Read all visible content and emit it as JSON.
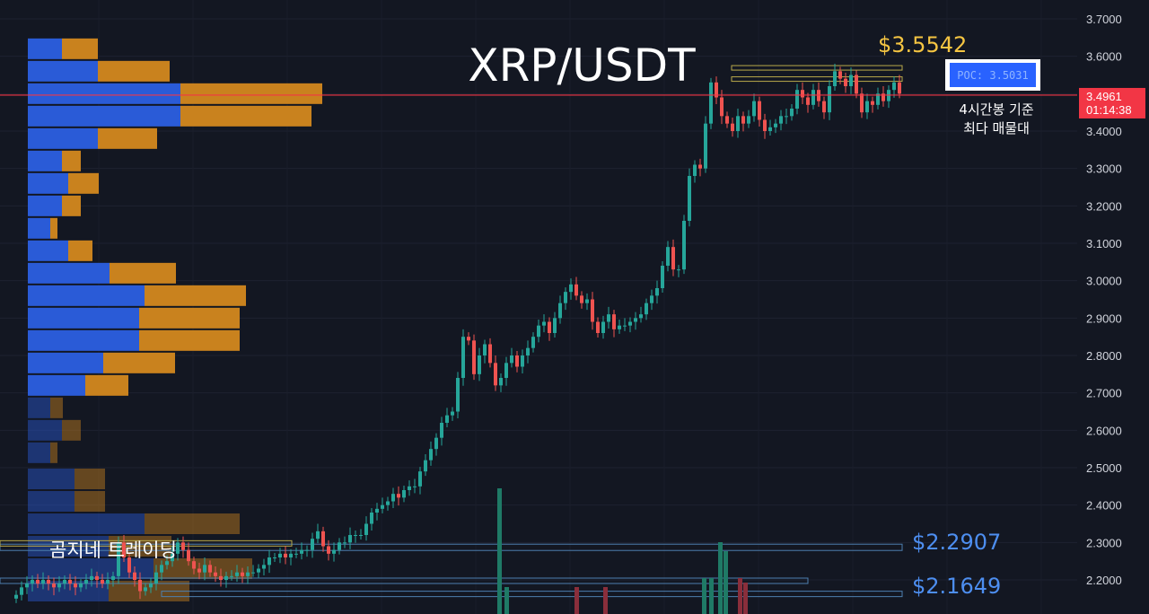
{
  "chart_data": {
    "type": "candlestick",
    "title": "XRP/USDT",
    "price_axis": {
      "ylim": [
        2.12,
        3.72
      ],
      "ticks": [
        "3.7000",
        "3.6000",
        "3.5000",
        "3.4000",
        "3.3000",
        "3.2000",
        "3.1000",
        "3.0000",
        "2.9000",
        "2.8000",
        "2.7000",
        "2.6000",
        "2.5000",
        "2.4000",
        "2.3000",
        "2.2000"
      ],
      "side": "right"
    },
    "current_price": {
      "value": "3.4961",
      "countdown": "01:14:38",
      "price": 3.4961
    },
    "poc": {
      "label": "POC: 3.5031",
      "price": 3.5031,
      "note_lines": [
        "4시간봉 기준",
        "최다 매물대"
      ]
    },
    "peak_label": {
      "text": "$3.5542",
      "price": 3.5542
    },
    "levels": [
      {
        "text": "$2.2907",
        "price": 2.2907
      },
      {
        "text": "$2.1649",
        "price": 2.1649
      }
    ],
    "watermark": "곰지네 트레이딩",
    "volume_profile": {
      "description_free": true,
      "rows": [
        {
          "price": 3.62,
          "buy": 38,
          "sell": 40
        },
        {
          "price": 3.56,
          "buy": 78,
          "sell": 80
        },
        {
          "price": 3.5,
          "buy": 170,
          "sell": 158
        },
        {
          "price": 3.44,
          "buy": 170,
          "sell": 146
        },
        {
          "price": 3.38,
          "buy": 78,
          "sell": 66
        },
        {
          "price": 3.32,
          "buy": 38,
          "sell": 21
        },
        {
          "price": 3.26,
          "buy": 45,
          "sell": 34
        },
        {
          "price": 3.2,
          "buy": 38,
          "sell": 21
        },
        {
          "price": 3.14,
          "buy": 25,
          "sell": 8
        },
        {
          "price": 3.08,
          "buy": 45,
          "sell": 27
        },
        {
          "price": 3.02,
          "buy": 91,
          "sell": 74
        },
        {
          "price": 2.96,
          "buy": 130,
          "sell": 113
        },
        {
          "price": 2.9,
          "buy": 124,
          "sell": 112
        },
        {
          "price": 2.84,
          "buy": 124,
          "sell": 112
        },
        {
          "price": 2.78,
          "buy": 84,
          "sell": 80
        },
        {
          "price": 2.72,
          "buy": 64,
          "sell": 48
        },
        {
          "price": 2.66,
          "buy": 25,
          "sell": 14
        },
        {
          "price": 2.6,
          "buy": 38,
          "sell": 21
        },
        {
          "price": 2.54,
          "buy": 25,
          "sell": 8
        },
        {
          "price": 2.47,
          "buy": 52,
          "sell": 34
        },
        {
          "price": 2.41,
          "buy": 52,
          "sell": 34
        },
        {
          "price": 2.35,
          "buy": 130,
          "sell": 106
        },
        {
          "price": 2.29,
          "buy": 90,
          "sell": 70
        },
        {
          "price": 2.23,
          "buy": 140,
          "sell": 110
        },
        {
          "price": 2.17,
          "buy": 90,
          "sell": 90
        }
      ]
    },
    "candles_anchor_close": [
      2.16,
      2.18,
      2.19,
      2.2,
      2.19,
      2.2,
      2.19,
      2.18,
      2.19,
      2.2,
      2.19,
      2.18,
      2.19,
      2.2,
      2.21,
      2.2,
      2.19,
      2.2,
      2.21,
      2.3,
      2.26,
      2.22,
      2.2,
      2.17,
      2.18,
      2.19,
      2.22,
      2.24,
      2.25,
      2.27,
      2.3,
      2.28,
      2.25,
      2.23,
      2.22,
      2.24,
      2.22,
      2.21,
      2.2,
      2.21,
      2.21,
      2.22,
      2.21,
      2.22,
      2.22,
      2.23,
      2.24,
      2.26,
      2.26,
      2.27,
      2.26,
      2.27,
      2.27,
      2.28,
      2.28,
      2.31,
      2.33,
      2.29,
      2.27,
      2.28,
      2.3,
      2.3,
      2.32,
      2.32,
      2.32,
      2.35,
      2.38,
      2.39,
      2.4,
      2.41,
      2.43,
      2.42,
      2.44,
      2.45,
      2.45,
      2.49,
      2.52,
      2.55,
      2.58,
      2.62,
      2.64,
      2.65,
      2.74,
      2.85,
      2.84,
      2.75,
      2.8,
      2.83,
      2.78,
      2.72,
      2.74,
      2.78,
      2.8,
      2.77,
      2.8,
      2.82,
      2.85,
      2.88,
      2.89,
      2.86,
      2.9,
      2.94,
      2.97,
      2.99,
      2.96,
      2.94,
      2.95,
      2.89,
      2.86,
      2.89,
      2.91,
      2.87,
      2.88,
      2.88,
      2.89,
      2.9,
      2.91,
      2.94,
      2.96,
      2.98,
      3.04,
      3.09,
      3.03,
      3.03,
      3.16,
      3.28,
      3.31,
      3.3,
      3.42,
      3.53,
      3.49,
      3.44,
      3.42,
      3.4,
      3.44,
      3.42,
      3.44,
      3.48,
      3.43,
      3.4,
      3.41,
      3.42,
      3.44,
      3.44,
      3.46,
      3.51,
      3.49,
      3.47,
      3.51,
      3.48,
      3.45,
      3.52,
      3.56,
      3.54,
      3.52,
      3.55,
      3.5,
      3.45,
      3.48,
      3.47,
      3.5,
      3.48,
      3.51,
      3.53,
      3.5
    ]
  }
}
